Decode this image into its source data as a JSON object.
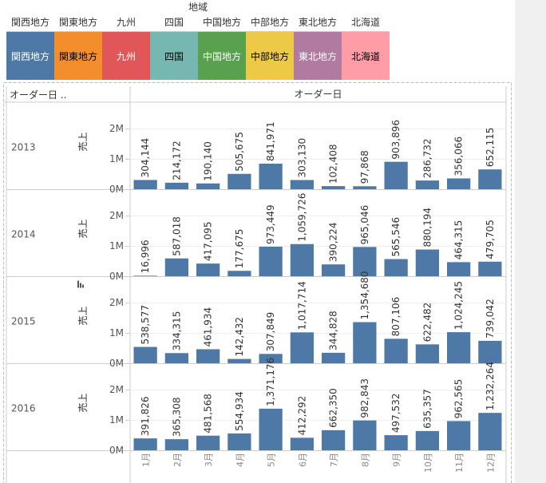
{
  "legend": {
    "title": "地域",
    "items": [
      {
        "label": "関西地方",
        "color": "#4e79a7",
        "text_color": "#ffffff"
      },
      {
        "label": "関東地方",
        "color": "#f28e2b",
        "text_color": "#000000"
      },
      {
        "label": "九州",
        "color": "#e15759",
        "text_color": "#ffffff"
      },
      {
        "label": "四国",
        "color": "#76b7b2",
        "text_color": "#000000"
      },
      {
        "label": "中国地方",
        "color": "#59a14f",
        "text_color": "#ffffff"
      },
      {
        "label": "中部地方",
        "color": "#edc948",
        "text_color": "#000000"
      },
      {
        "label": "東北地方",
        "color": "#b07aa1",
        "text_color": "#ffffff"
      },
      {
        "label": "北海道",
        "color": "#ff9da7",
        "text_color": "#000000"
      }
    ]
  },
  "chart_data": {
    "type": "bar",
    "row_header": "オーダー日 ..",
    "column_header": "オーダー日",
    "ylabel": "売上",
    "sort_icon": "sort-descending-icon",
    "bar_color": "#4e79a7",
    "ylim": [
      0,
      2800000
    ],
    "yticks": [
      "0M",
      "1M",
      "2M"
    ],
    "categories": [
      "1月",
      "2月",
      "3月",
      "4月",
      "5月",
      "6月",
      "7月",
      "8月",
      "9月",
      "10月",
      "11月",
      "12月"
    ],
    "series": [
      {
        "name": "2013",
        "values": [
          304144,
          214172,
          190140,
          505675,
          841971,
          303130,
          102408,
          97868,
          903896,
          286732,
          356066,
          652115
        ],
        "labels": [
          "304,144",
          "214,172",
          "190,140",
          "505,675",
          "841,971",
          "303,130",
          "102,408",
          "97,868",
          "903,896",
          "286,732",
          "356,066",
          "652,115"
        ]
      },
      {
        "name": "2014",
        "values": [
          16996,
          587018,
          417095,
          177675,
          973449,
          1059726,
          390224,
          965046,
          565546,
          880194,
          464315,
          479705
        ],
        "labels": [
          "16,996",
          "587,018",
          "417,095",
          "177,675",
          "973,449",
          "1,059,726",
          "390,224",
          "965,046",
          "565,546",
          "880,194",
          "464,315",
          "479,705"
        ]
      },
      {
        "name": "2015",
        "values": [
          538577,
          334315,
          461934,
          142432,
          307849,
          1017714,
          344828,
          1354680,
          807106,
          622482,
          1024245,
          739042
        ],
        "labels": [
          "538,577",
          "334,315",
          "461,934",
          "142,432",
          "307,849",
          "1,017,714",
          "344,828",
          "1,354,680",
          "807,106",
          "622,482",
          "1,024,245",
          "739,042"
        ]
      },
      {
        "name": "2016",
        "values": [
          391826,
          365308,
          481568,
          554934,
          1371176,
          412292,
          662350,
          982843,
          497532,
          635357,
          962565,
          1232264
        ],
        "labels": [
          "391,826",
          "365,308",
          "481,568",
          "554,934",
          "1,371,176",
          "412,292",
          "662,350",
          "982,843",
          "497,532",
          "635,357",
          "962,565",
          "1,232,264"
        ]
      }
    ]
  }
}
